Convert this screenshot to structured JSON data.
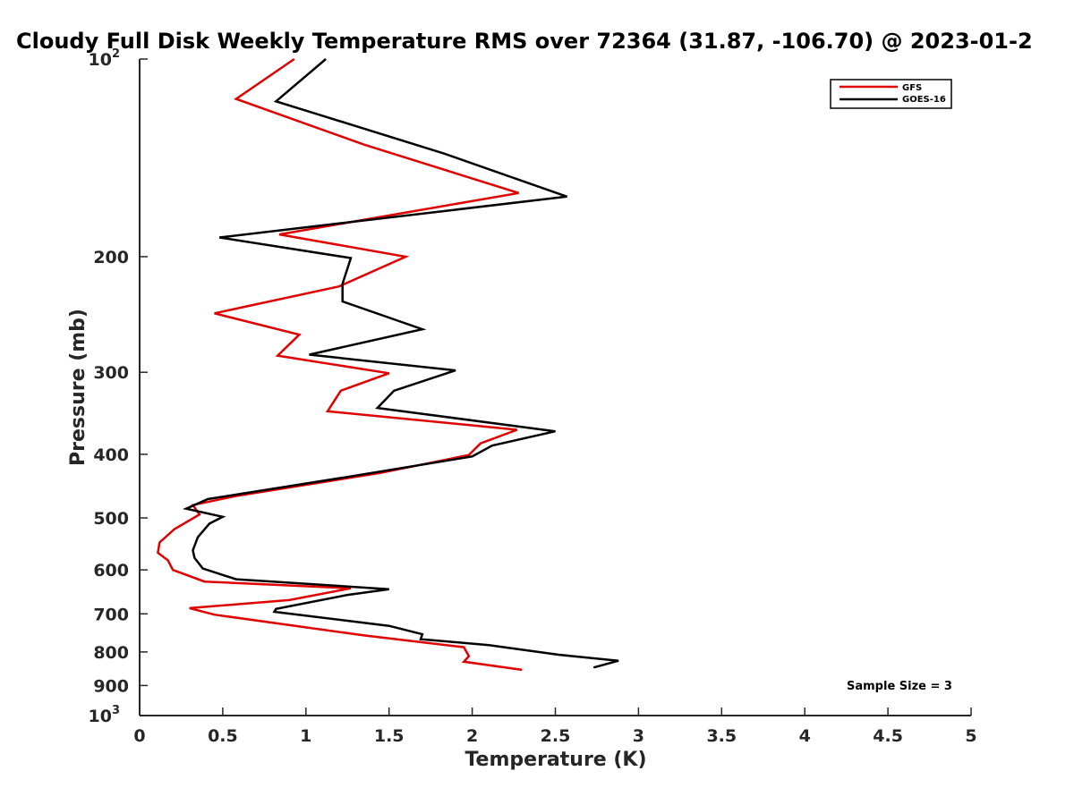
{
  "chart_data": {
    "type": "line",
    "title": "Cloudy Full Disk Weekly Temperature RMS over 72364 (31.87, -106.70) @ 2023-01-2",
    "xlabel": "Temperature (K)",
    "ylabel": "Pressure (mb)",
    "xlim": [
      0,
      5
    ],
    "ylim": [
      100,
      1000
    ],
    "y_scale": "log",
    "y_reversed": true,
    "grid": false,
    "legend_position": "top-right",
    "x_ticks": [
      "0",
      "0.5",
      "1",
      "1.5",
      "2",
      "2.5",
      "3",
      "3.5",
      "4",
      "4.5",
      "5"
    ],
    "x_tick_values": [
      0,
      0.5,
      1,
      1.5,
      2,
      2.5,
      3,
      3.5,
      4,
      4.5,
      5
    ],
    "y_ticks": [
      {
        "value": 100,
        "base": "10",
        "exp": "2"
      },
      {
        "value": 200,
        "base": "200",
        "exp": ""
      },
      {
        "value": 300,
        "base": "300",
        "exp": ""
      },
      {
        "value": 400,
        "base": "400",
        "exp": ""
      },
      {
        "value": 500,
        "base": "500",
        "exp": ""
      },
      {
        "value": 600,
        "base": "600",
        "exp": ""
      },
      {
        "value": 700,
        "base": "700",
        "exp": ""
      },
      {
        "value": 800,
        "base": "800",
        "exp": ""
      },
      {
        "value": 900,
        "base": "900",
        "exp": ""
      },
      {
        "value": 1000,
        "base": "10",
        "exp": "3"
      }
    ],
    "annotation": "Sample Size = 3",
    "series": [
      {
        "name": "GFS",
        "color": "#e00000",
        "points": [
          [
            0.93,
            100
          ],
          [
            0.58,
            115
          ],
          [
            1.35,
            135
          ],
          [
            2.28,
            160
          ],
          [
            0.84,
            185
          ],
          [
            1.6,
            200
          ],
          [
            1.2,
            222
          ],
          [
            0.45,
            244
          ],
          [
            0.96,
            263
          ],
          [
            0.83,
            283
          ],
          [
            1.5,
            301
          ],
          [
            1.21,
            320
          ],
          [
            1.13,
            344
          ],
          [
            2.27,
            367
          ],
          [
            2.05,
            385
          ],
          [
            1.98,
            401
          ],
          [
            1.45,
            427
          ],
          [
            0.58,
            463
          ],
          [
            0.32,
            478
          ],
          [
            0.36,
            494
          ],
          [
            0.21,
            520
          ],
          [
            0.12,
            545
          ],
          [
            0.11,
            565
          ],
          [
            0.17,
            580
          ],
          [
            0.2,
            600
          ],
          [
            0.39,
            625
          ],
          [
            1.27,
            640
          ],
          [
            0.9,
            667
          ],
          [
            0.3,
            686
          ],
          [
            0.45,
            702
          ],
          [
            1.35,
            755
          ],
          [
            1.95,
            787
          ],
          [
            1.98,
            812
          ],
          [
            1.95,
            828
          ],
          [
            2.3,
            852
          ]
        ]
      },
      {
        "name": "GOES-16",
        "color": "#000000",
        "points": [
          [
            1.12,
            100
          ],
          [
            0.82,
            116
          ],
          [
            1.82,
            139
          ],
          [
            2.57,
            162
          ],
          [
            0.48,
            187
          ],
          [
            1.27,
            201
          ],
          [
            1.22,
            220
          ],
          [
            1.22,
            234
          ],
          [
            1.7,
            258
          ],
          [
            1.02,
            282
          ],
          [
            1.9,
            298
          ],
          [
            1.53,
            320
          ],
          [
            1.43,
            340
          ],
          [
            2.5,
            369
          ],
          [
            2.12,
            388
          ],
          [
            2.0,
            403
          ],
          [
            1.25,
            433
          ],
          [
            0.41,
            468
          ],
          [
            0.28,
            484
          ],
          [
            0.5,
            498
          ],
          [
            0.42,
            510
          ],
          [
            0.35,
            535
          ],
          [
            0.32,
            560
          ],
          [
            0.33,
            575
          ],
          [
            0.38,
            597
          ],
          [
            0.58,
            620
          ],
          [
            1.5,
            642
          ],
          [
            1.25,
            655
          ],
          [
            0.82,
            688
          ],
          [
            0.81,
            695
          ],
          [
            1.5,
            730
          ],
          [
            1.7,
            752
          ],
          [
            1.69,
            765
          ],
          [
            2.1,
            781
          ],
          [
            2.52,
            808
          ],
          [
            2.88,
            825
          ],
          [
            2.73,
            845
          ]
        ]
      }
    ]
  }
}
